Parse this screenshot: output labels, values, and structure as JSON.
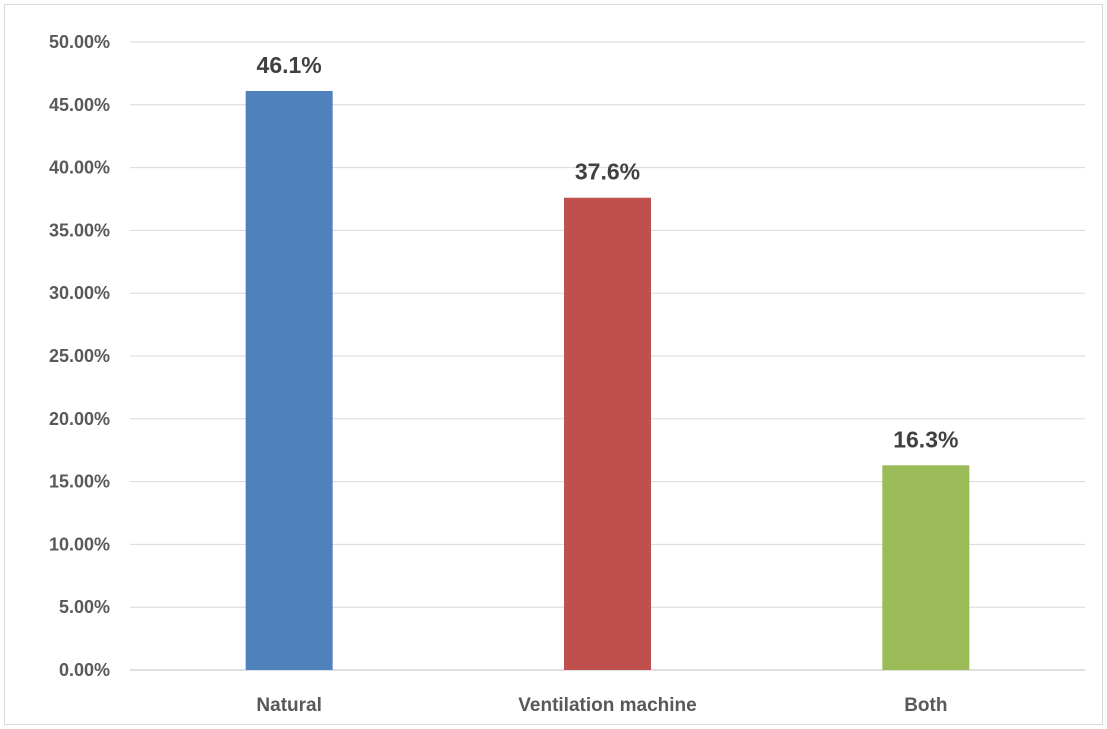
{
  "chart_data": {
    "type": "bar",
    "categories": [
      "Natural",
      "Ventilation machine",
      "Both"
    ],
    "values": [
      46.1,
      37.6,
      16.3
    ],
    "data_labels": [
      "46.1%",
      "37.6%",
      "16.3%"
    ],
    "colors": [
      "#4f81bd",
      "#c0504d",
      "#9bbb59"
    ],
    "ylim": [
      0,
      50
    ],
    "y_ticks": [
      0,
      5,
      10,
      15,
      20,
      25,
      30,
      35,
      40,
      45,
      50
    ],
    "y_tick_labels": [
      "0.00%",
      "5.00%",
      "10.00%",
      "15.00%",
      "20.00%",
      "25.00%",
      "30.00%",
      "35.00%",
      "40.00%",
      "45.00%",
      "50.00%"
    ],
    "grid": true,
    "legend": "none",
    "title": "",
    "xlabel": "",
    "ylabel": ""
  }
}
